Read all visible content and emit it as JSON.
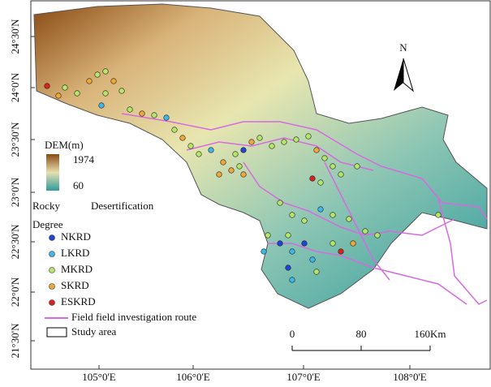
{
  "map": {
    "north": "N",
    "lat_labels": [
      "24°30'N",
      "24°0'N",
      "23°30'N",
      "23°0'N",
      "22°30'N",
      "22°0'N",
      "21°30'N"
    ],
    "lon_labels": [
      "105°0'E",
      "106°0'E",
      "107°0'E",
      "108°0'E"
    ],
    "legend": {
      "dem_title": "DEM(m)",
      "dem_high": "1974",
      "dem_low": "60",
      "title_line1": "Rocky",
      "title_line2": "Desertification",
      "title_line3": "Degree",
      "items": [
        {
          "label": "NKRD",
          "color": "#1f45d8"
        },
        {
          "label": "LKRD",
          "color": "#3fb6e8"
        },
        {
          "label": "MKRD",
          "color": "#b5e66a"
        },
        {
          "label": "SKRD",
          "color": "#f0a73a"
        },
        {
          "label": "ESKRD",
          "color": "#d8241c"
        }
      ],
      "route": "Field  field investigation route",
      "route_color": "#d66ae0",
      "study_area": "Study area"
    },
    "scale": {
      "labels": [
        "0",
        "80",
        "160Km"
      ]
    }
  }
}
